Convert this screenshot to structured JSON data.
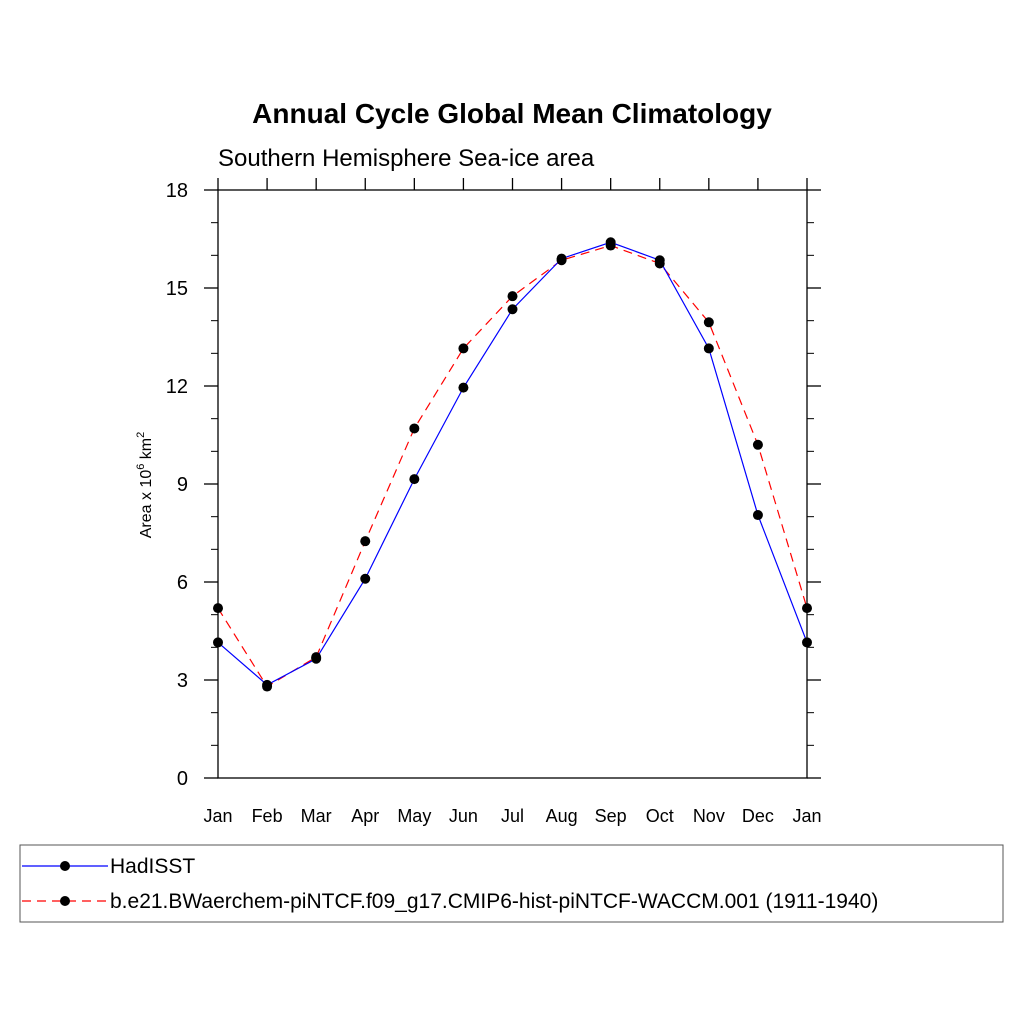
{
  "chart_data": {
    "type": "line",
    "title": "Annual Cycle Global Mean Climatology",
    "subtitle": "Southern Hemisphere Sea-ice area",
    "ylabel_main": "Area x 10",
    "ylabel_exp1": "6",
    "ylabel_unit": " km",
    "ylabel_exp2": "2",
    "ylim": [
      0,
      18
    ],
    "yticks": [
      "0",
      "3",
      "6",
      "9",
      "12",
      "15",
      "18"
    ],
    "categories": [
      "Jan",
      "Feb",
      "Mar",
      "Apr",
      "May",
      "Jun",
      "Jul",
      "Aug",
      "Sep",
      "Oct",
      "Nov",
      "Dec",
      "Jan"
    ],
    "grid": false,
    "legend_placement": "bottom",
    "series": [
      {
        "name": "HadISST",
        "color": "#0000ff",
        "dash": "solid",
        "values": [
          4.15,
          2.85,
          3.65,
          6.1,
          9.15,
          11.95,
          14.35,
          15.9,
          16.4,
          15.85,
          13.15,
          8.05,
          4.15
        ]
      },
      {
        "name": "b.e21.BWaerchem-piNTCF.f09_g17.CMIP6-hist-piNTCF-WACCM.001 (1911-1940)",
        "color": "#ff0000",
        "dash": "dashed",
        "values": [
          5.2,
          2.8,
          3.7,
          7.25,
          10.7,
          13.15,
          14.75,
          15.85,
          16.3,
          15.75,
          13.95,
          10.2,
          5.2
        ]
      }
    ]
  }
}
